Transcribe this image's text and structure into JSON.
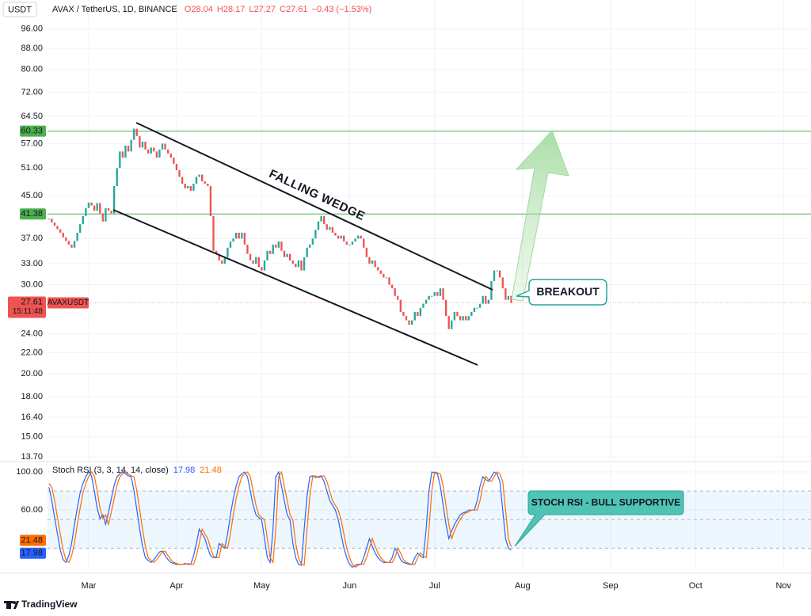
{
  "chart_data": [
    {
      "type": "candlestick",
      "currency": "USDT",
      "title": "AVAX / TetherUS, 1D, BINANCE",
      "ohlc_legend": [
        "O28.04",
        "H28.17",
        "L27.27",
        "C27.61",
        "−0.43 (−1.53%)"
      ],
      "symbol": "AVAXUSDT",
      "countdown": "15:11:48",
      "annotations": [
        "FALLING WEDGE",
        "BREAKOUT"
      ],
      "log_scale": true,
      "grid": true,
      "up_color": "#26a69a",
      "down_color": "#ef5350",
      "level_color": "#4caf50",
      "levels": [
        60.33,
        41.38
      ],
      "ylim": [
        13.55,
        102
      ],
      "yticks": [
        {
          "value": 96,
          "label": "96.00"
        },
        {
          "value": 88,
          "label": "88.00"
        },
        {
          "value": 80,
          "label": "80.00"
        },
        {
          "value": 72,
          "label": "72.00"
        },
        {
          "value": 64.5,
          "label": "64.50"
        },
        {
          "value": 57,
          "label": "57.00"
        },
        {
          "value": 51,
          "label": "51.00"
        },
        {
          "value": 45,
          "label": "45.00"
        },
        {
          "value": 37,
          "label": "37.00"
        },
        {
          "value": 33,
          "label": "33.00"
        },
        {
          "value": 30,
          "label": "30.00"
        },
        {
          "value": 24,
          "label": "24.00"
        },
        {
          "value": 22,
          "label": "22.00"
        },
        {
          "value": 20,
          "label": "20.00"
        },
        {
          "value": 18,
          "label": "18.00"
        },
        {
          "value": 16.4,
          "label": "16.40"
        },
        {
          "value": 15,
          "label": "15.00"
        },
        {
          "value": 13.7,
          "label": "13.70"
        }
      ],
      "xlim": [
        -0.5,
        268.7
      ],
      "xticks": [
        {
          "value": 14,
          "label": "Mar"
        },
        {
          "value": 45,
          "label": "Apr"
        },
        {
          "value": 75,
          "label": "May"
        },
        {
          "value": 106,
          "label": "Jun"
        },
        {
          "value": 136,
          "label": "Jul"
        },
        {
          "value": 167,
          "label": "Aug"
        },
        {
          "value": 198,
          "label": "Sep"
        },
        {
          "value": 228,
          "label": "Oct"
        },
        {
          "value": 259,
          "label": "Nov"
        }
      ],
      "values": [
        40.5,
        39.8,
        39.2,
        38.6,
        38,
        37.2,
        36.6,
        36,
        35.5,
        36.6,
        38,
        39.5,
        41,
        42.5,
        43.6,
        43,
        42,
        43.5,
        41.5,
        40,
        42.5,
        42,
        41.5,
        47,
        51,
        55,
        53.5,
        56.5,
        55,
        58,
        61,
        59,
        56,
        57.5,
        55.5,
        54.5,
        56,
        55,
        53.5,
        55.5,
        57,
        55.5,
        54.5,
        53.5,
        52,
        50.5,
        49,
        47.5,
        46.5,
        47,
        46,
        47.5,
        49,
        49.5,
        48,
        47.5,
        47,
        41,
        35,
        34.5,
        33.5,
        33,
        34,
        35.5,
        36.5,
        37,
        38,
        37,
        38,
        36,
        34.5,
        33.5,
        33,
        34,
        32.5,
        32,
        33.5,
        35,
        34.5,
        36,
        35.5,
        36.5,
        35,
        34,
        34.5,
        33.5,
        33,
        32.5,
        33.5,
        32,
        34,
        35.5,
        36,
        37,
        38.5,
        40,
        41,
        39.5,
        38.5,
        39,
        38,
        37.5,
        37,
        37.5,
        36.5,
        36,
        36,
        36.5,
        37,
        37.5,
        37,
        35.5,
        34,
        33,
        33.5,
        32.5,
        32,
        31.5,
        31,
        31,
        30,
        29.5,
        28.5,
        28,
        26.5,
        26,
        25.5,
        25,
        25.5,
        26.5,
        26,
        27,
        27.5,
        28,
        28.5,
        28.5,
        29,
        28.5,
        29.5,
        28,
        26,
        24.5,
        25.5,
        26.5,
        26,
        25.5,
        26,
        25.5,
        26,
        26.5,
        27,
        27,
        27.5,
        28.5,
        27.5,
        28,
        30.5,
        32,
        32,
        31,
        29.5,
        28,
        28.5,
        27.61
      ]
    },
    {
      "type": "line",
      "title": "Stoch RSI (3, 3, 14, 14, close)",
      "annotations": [
        "STOCH RSI - BULL SUPPORTIVE"
      ],
      "grid": true,
      "band": [
        20,
        80
      ],
      "band_color": "#2196f3",
      "ylim": [
        -3,
        110
      ],
      "yticks": [
        {
          "value": 100,
          "label": "100.00"
        },
        {
          "value": 60,
          "label": "60.00"
        }
      ],
      "series": [
        {
          "color": "#2962ff",
          "values": [
            84,
            70,
            52,
            35,
            18,
            8,
            5,
            12,
            25,
            45,
            62,
            78,
            88,
            95,
            100,
            96,
            80,
            62,
            51,
            55,
            45,
            58,
            72,
            86,
            95,
            98,
            100,
            98,
            96,
            95,
            80,
            60,
            40,
            22,
            10,
            7,
            5,
            8,
            12,
            16,
            17,
            12,
            8,
            5,
            4,
            3,
            3,
            3,
            4,
            3,
            3,
            12,
            25,
            40,
            35,
            30,
            20,
            12,
            10,
            10,
            25,
            22,
            20,
            35,
            55,
            72,
            85,
            95,
            98,
            100,
            95,
            80,
            65,
            55,
            52,
            50,
            30,
            10,
            5,
            40,
            95,
            100,
            85,
            70,
            55,
            50,
            25,
            10,
            3,
            2,
            40,
            75,
            95,
            96,
            94,
            95,
            96,
            90,
            80,
            70,
            65,
            60,
            50,
            35,
            20,
            10,
            3,
            0,
            2,
            3,
            3,
            10,
            20,
            30,
            22,
            15,
            10,
            7,
            5,
            5,
            5,
            10,
            20,
            15,
            8,
            5,
            4,
            3,
            3,
            10,
            15,
            12,
            10,
            40,
            80,
            100,
            99,
            98,
            85,
            65,
            45,
            30,
            38,
            45,
            50,
            55,
            57,
            58,
            60,
            60,
            60,
            70,
            85,
            95,
            92,
            90,
            95,
            100,
            98,
            90,
            60,
            30,
            20,
            17.98
          ]
        },
        {
          "color": "#ff6d00",
          "values": [
            88,
            84,
            70,
            52,
            35,
            18,
            8,
            5,
            12,
            25,
            45,
            62,
            78,
            88,
            95,
            100,
            96,
            80,
            62,
            51,
            55,
            45,
            58,
            72,
            86,
            95,
            98,
            100,
            98,
            96,
            95,
            80,
            60,
            40,
            22,
            10,
            7,
            5,
            8,
            12,
            16,
            17,
            12,
            8,
            5,
            4,
            3,
            3,
            3,
            4,
            3,
            3,
            12,
            25,
            40,
            35,
            30,
            20,
            12,
            10,
            10,
            25,
            22,
            20,
            35,
            55,
            72,
            85,
            95,
            98,
            100,
            95,
            80,
            65,
            55,
            52,
            50,
            30,
            10,
            5,
            40,
            95,
            100,
            85,
            70,
            55,
            50,
            25,
            10,
            3,
            2,
            40,
            75,
            95,
            96,
            94,
            95,
            96,
            90,
            80,
            70,
            65,
            60,
            50,
            35,
            20,
            10,
            3,
            0,
            2,
            3,
            3,
            10,
            20,
            30,
            22,
            15,
            10,
            7,
            5,
            5,
            5,
            10,
            20,
            15,
            8,
            5,
            4,
            3,
            3,
            10,
            15,
            12,
            10,
            40,
            80,
            100,
            99,
            98,
            85,
            65,
            45,
            30,
            38,
            45,
            50,
            55,
            57,
            58,
            60,
            60,
            60,
            70,
            85,
            95,
            92,
            90,
            95,
            100,
            98,
            90,
            60,
            30,
            21.48
          ]
        }
      ]
    }
  ],
  "watermark": "TradingView"
}
